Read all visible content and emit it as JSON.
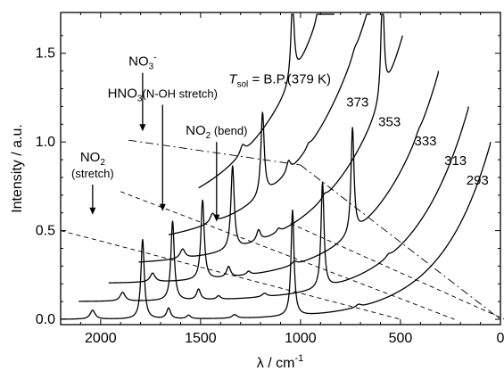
{
  "chart_data": {
    "type": "line",
    "xlabel": "λ / cm",
    "xlabel_sup": "-1",
    "ylabel": "Intensity / a.u.",
    "xlim": [
      2200,
      0
    ],
    "ylim": [
      -0.03,
      1.73
    ],
    "x_reversed": true,
    "x_ticks": [
      2000,
      1500,
      1000,
      500,
      0
    ],
    "y_ticks": [
      0.0,
      0.5,
      1.0,
      1.5
    ],
    "x_tick_labels": [
      "2000",
      "1500",
      "1000",
      "500",
      "0"
    ],
    "y_tick_labels": [
      "0.0",
      "0.5",
      "1.0",
      "1.5"
    ],
    "grid": false,
    "offset_per_trace": {
      "x": -150,
      "y": 0.1
    },
    "peaks": [
      {
        "x": 2040,
        "height": 0.05,
        "width": 15
      },
      {
        "x": 1790,
        "height": 0.45,
        "width": 10
      },
      {
        "x": 1660,
        "height": 0.06,
        "width": 12
      },
      {
        "x": 1560,
        "height": 0.02,
        "width": 12
      },
      {
        "x": 1330,
        "height": 0.02,
        "width": 15
      },
      {
        "x": 1040,
        "height": 0.6,
        "width": 9
      },
      {
        "x": 710,
        "height": 0.015,
        "width": 15
      }
    ],
    "series": [
      {
        "name": "293",
        "label_value": 0.76,
        "rise_x": 50,
        "peak_scale": 1.0,
        "max": 1.0
      },
      {
        "name": "313",
        "label_value": 0.87,
        "rise_x": 160,
        "peak_scale": 1.0,
        "max": 1.1
      },
      {
        "name": "333",
        "label_value": 0.98,
        "rise_x": 310,
        "peak_scale": 1.0,
        "max": 1.2
      },
      {
        "name": "353",
        "label_value": 1.09,
        "rise_x": 490,
        "peak_scale": 1.05,
        "max": 1.3
      },
      {
        "name": "373",
        "label_value": 1.2,
        "rise_x": 650,
        "peak_scale": 1.05,
        "max": 1.4
      },
      {
        "name": "B.P.(379 K)",
        "label_value": 1.33,
        "rise_x": 830,
        "peak_scale": 1.0,
        "max": 1.5
      }
    ],
    "series_label_prefix": {
      "symbol": "T",
      "subscript": "sol",
      "equals": " = "
    },
    "dashed_guides": [
      {
        "style": "dashed",
        "from": [
          2200,
          0.5
        ],
        "to": [
          500,
          0.0
        ]
      },
      {
        "style": "dashed",
        "from": [
          1900,
          0.72
        ],
        "to": [
          230,
          0.0
        ]
      },
      {
        "style": "dashed",
        "from": [
          1050,
          0.54
        ],
        "to": [
          -20,
          0.0
        ]
      },
      {
        "style": "dashdot",
        "from": [
          1860,
          1.01
        ],
        "to": [
          1000,
          0.87
        ]
      },
      {
        "style": "dashdot",
        "from": [
          1000,
          0.87
        ],
        "to": [
          0,
          0.0
        ]
      }
    ],
    "annotations": [
      {
        "id": "no2-stretch",
        "lines": [
          {
            "text": "NO",
            "sub": "2"
          },
          {
            "text": "(stretch)"
          }
        ],
        "text_at": [
          2040,
          0.89
        ],
        "arrow_to": [
          2040,
          0.59
        ]
      },
      {
        "id": "no3-minus",
        "lines": [
          {
            "text": "NO",
            "sub": "3",
            "sup": "-"
          }
        ],
        "text_at": [
          1790,
          1.43
        ],
        "arrow_to": [
          1790,
          1.06
        ]
      },
      {
        "id": "hno3",
        "lines": [
          {
            "text": "HNO",
            "sub": "3",
            "tail": "(N-OH stretch)"
          }
        ],
        "text_at": [
          1690,
          1.25
        ],
        "arrow_to": [
          1690,
          0.61
        ]
      },
      {
        "id": "no2-bend",
        "lines": [
          {
            "text": "NO",
            "sub": "2",
            "tail": " (bend)"
          }
        ],
        "text_at": [
          1420,
          1.04
        ],
        "arrow_to": [
          1420,
          0.55
        ]
      }
    ]
  }
}
